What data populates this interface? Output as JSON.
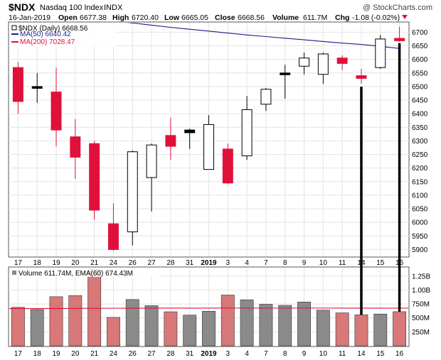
{
  "header": {
    "symbol": "$NDX",
    "name": "Nasdaq 100 Index",
    "exchange": "INDX",
    "date": "16-Jan-2019",
    "open_label": "Open",
    "open": "6677.38",
    "high_label": "High",
    "high": "6720.40",
    "low_label": "Low",
    "low": "6665.05",
    "close_label": "Close",
    "close": "6668.56",
    "volume_label": "Volume",
    "volume": "611.7M",
    "chg_label": "Chg",
    "chg": "-1.08 (-0.02%)",
    "watermark": "@ StockCharts.com"
  },
  "legend": {
    "main": "$NDX (Daily) 6668.56",
    "ma50": "MA(50) 6640.42",
    "ma200": "MA(200) 7028.47",
    "volume": "Volume 611.74M, EMA(60) 674.43M"
  },
  "colors": {
    "up": "#000000",
    "down": "#e0103a",
    "ma50": "#1c1c8c",
    "ma200": "#e0103a",
    "vol_up": "#8a8a8a",
    "vol_down": "#d87878",
    "ema": "#e0103a",
    "grid": "#e4e4e4"
  },
  "chart_data": [
    {
      "type": "candlestick",
      "ylim": [
        5875,
        6735
      ],
      "y_ticks": [
        5900,
        5950,
        6000,
        6050,
        6100,
        6150,
        6200,
        6250,
        6300,
        6350,
        6400,
        6450,
        6500,
        6550,
        6600,
        6650,
        6700
      ],
      "grid": true,
      "x_labels": [
        "17",
        "18",
        "19",
        "20",
        "21",
        "24",
        "26",
        "27",
        "28",
        "31",
        "2019",
        "3",
        "4",
        "7",
        "8",
        "9",
        "10",
        "11",
        "14",
        "15",
        "16"
      ],
      "candles": [
        {
          "o": 6570,
          "h": 6590,
          "l": 6400,
          "c": 6445
        },
        {
          "o": 6495,
          "h": 6550,
          "l": 6440,
          "c": 6500
        },
        {
          "o": 6480,
          "h": 6570,
          "l": 6280,
          "c": 6340
        },
        {
          "o": 6315,
          "h": 6380,
          "l": 6160,
          "c": 6240
        },
        {
          "o": 6290,
          "h": 6300,
          "l": 6010,
          "c": 6045
        },
        {
          "o": 5995,
          "h": 6070,
          "l": 5895,
          "c": 5900
        },
        {
          "o": 5965,
          "h": 6265,
          "l": 5915,
          "c": 6260
        },
        {
          "o": 6165,
          "h": 6290,
          "l": 6040,
          "c": 6285
        },
        {
          "o": 6320,
          "h": 6385,
          "l": 6230,
          "c": 6280
        },
        {
          "o": 6330,
          "h": 6345,
          "l": 6270,
          "c": 6340
        },
        {
          "o": 6195,
          "h": 6395,
          "l": 6195,
          "c": 6360
        },
        {
          "o": 6270,
          "h": 6290,
          "l": 6140,
          "c": 6145
        },
        {
          "o": 6245,
          "h": 6465,
          "l": 6230,
          "c": 6415
        },
        {
          "o": 6435,
          "h": 6495,
          "l": 6410,
          "c": 6490
        },
        {
          "o": 6545,
          "h": 6580,
          "l": 6455,
          "c": 6550
        },
        {
          "o": 6575,
          "h": 6625,
          "l": 6545,
          "c": 6605
        },
        {
          "o": 6545,
          "h": 6625,
          "l": 6510,
          "c": 6620
        },
        {
          "o": 6605,
          "h": 6615,
          "l": 6560,
          "c": 6585
        },
        {
          "o": 6540,
          "h": 6565,
          "l": 6510,
          "c": 6530
        },
        {
          "o": 6570,
          "h": 6690,
          "l": 6565,
          "c": 6675
        },
        {
          "o": 6677.38,
          "h": 6720.4,
          "l": 6665.05,
          "c": 6668.56
        }
      ],
      "ma50": [
        6780,
        6774,
        6768,
        6760,
        6752,
        6742,
        6734,
        6726,
        6718,
        6711,
        6704,
        6697,
        6690,
        6684,
        6678,
        6672,
        6666,
        6660,
        6655,
        6648,
        6640.42
      ]
    },
    {
      "type": "bar",
      "title": "Volume",
      "ylim": [
        0,
        1400
      ],
      "y_ticks": [
        250,
        500,
        750,
        1000,
        1250
      ],
      "y_tick_labels": [
        "250M",
        "500M",
        "750M",
        "1.00B",
        "1.25B"
      ],
      "values": [
        690,
        650,
        880,
        900,
        1370,
        510,
        830,
        720,
        610,
        550,
        620,
        910,
        825,
        745,
        725,
        785,
        640,
        590,
        555,
        570,
        611.74
      ],
      "ema": [
        668,
        668,
        669,
        670,
        672,
        673,
        674,
        675,
        675,
        675,
        675,
        676,
        676,
        676,
        676,
        676,
        676,
        675,
        675,
        675,
        674.43
      ]
    }
  ]
}
